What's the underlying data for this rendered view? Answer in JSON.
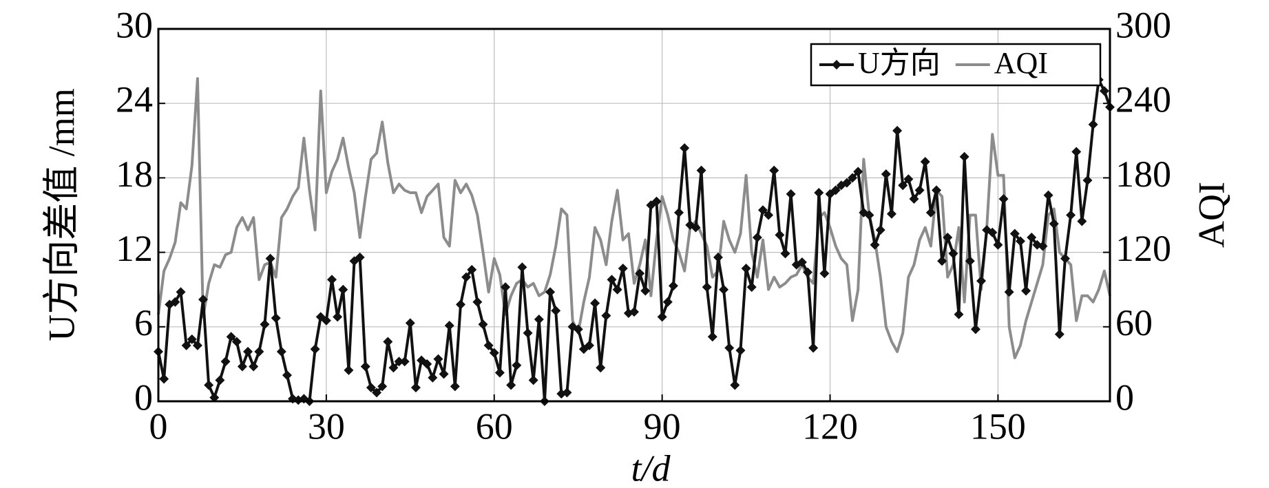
{
  "chart_data": {
    "type": "line",
    "xlabel": "t/d",
    "ylabel": "U方向差值 /mm",
    "y2label": "AQI",
    "xlim": [
      0,
      170
    ],
    "xticks": [
      0,
      30,
      60,
      90,
      120,
      150
    ],
    "ylim": [
      0,
      30
    ],
    "yticks": [
      0,
      6,
      12,
      18,
      24,
      30
    ],
    "y2lim": [
      0,
      300
    ],
    "y2ticks": [
      0,
      60,
      120,
      180,
      240,
      300
    ],
    "grid": true,
    "legend": "upper right",
    "x": [
      0,
      1,
      2,
      3,
      4,
      5,
      6,
      7,
      8,
      9,
      10,
      11,
      12,
      13,
      14,
      15,
      16,
      17,
      18,
      19,
      20,
      21,
      22,
      23,
      24,
      25,
      26,
      27,
      28,
      29,
      30,
      31,
      32,
      33,
      34,
      35,
      36,
      37,
      38,
      39,
      40,
      41,
      42,
      43,
      44,
      45,
      46,
      47,
      48,
      49,
      50,
      51,
      52,
      53,
      54,
      55,
      56,
      57,
      58,
      59,
      60,
      61,
      62,
      63,
      64,
      65,
      66,
      67,
      68,
      69,
      70,
      71,
      72,
      73,
      74,
      75,
      76,
      77,
      78,
      79,
      80,
      81,
      82,
      83,
      84,
      85,
      86,
      87,
      88,
      89,
      90,
      91,
      92,
      93,
      94,
      95,
      96,
      97,
      98,
      99,
      100,
      101,
      102,
      103,
      104,
      105,
      106,
      107,
      108,
      109,
      110,
      111,
      112,
      113,
      114,
      115,
      116,
      117,
      118,
      119,
      120,
      121,
      122,
      123,
      124,
      125,
      126,
      127,
      128,
      129,
      130,
      131,
      132,
      133,
      134,
      135,
      136,
      137,
      138,
      139,
      140,
      141,
      142,
      143,
      144,
      145,
      146,
      147,
      148,
      149,
      150,
      151,
      152,
      153,
      154,
      155,
      156,
      157,
      158,
      159,
      160,
      161,
      162,
      163,
      164,
      165,
      166,
      167,
      168,
      169,
      170
    ],
    "series": [
      {
        "name": "U方向",
        "color": "#111111",
        "marker": "diamond",
        "values": [
          4,
          1.8,
          7.8,
          8,
          8.8,
          4.5,
          5,
          4.5,
          8.2,
          1.3,
          0.3,
          1.7,
          3.2,
          5.2,
          4.8,
          2.8,
          4,
          2.8,
          4,
          6.2,
          11.5,
          6.7,
          4,
          2.1,
          0.2,
          0.1,
          0.2,
          0,
          4.2,
          6.8,
          6.5,
          9.8,
          6.8,
          9,
          2.5,
          11.3,
          11.6,
          2.8,
          1.1,
          0.7,
          1.2,
          4.8,
          2.7,
          3.2,
          3.2,
          6.3,
          1.1,
          3.3,
          3,
          1.9,
          3.4,
          2.2,
          6.1,
          1.2,
          7.8,
          10,
          10.6,
          8,
          6.2,
          4.5,
          3.9,
          2.3,
          9.2,
          1.3,
          2.9,
          10.8,
          5.5,
          1.7,
          6.6,
          0,
          8.8,
          7.3,
          0.6,
          0.7,
          6,
          5.8,
          4.2,
          4.5,
          7.9,
          2.7,
          6.9,
          9.8,
          9,
          10.7,
          7.1,
          7.2,
          10.3,
          8.9,
          15.8,
          16.1,
          6.8,
          8,
          9.3,
          15.2,
          20.4,
          14.2,
          14,
          18.6,
          9.2,
          5.2,
          11.6,
          9,
          4.3,
          1.3,
          4.1,
          10.7,
          9.2,
          13.2,
          15.4,
          15,
          18.6,
          13.4,
          11.9,
          16.7,
          11,
          11.2,
          10.4,
          4.3,
          16.8,
          10.3,
          16.7,
          17,
          17.4,
          17.6,
          18,
          18.5,
          15.2,
          15,
          12.6,
          13.8,
          18.3,
          15.1,
          21.8,
          17.4,
          17.9,
          16.3,
          17,
          19.3,
          15.2,
          17,
          11.3,
          13.2,
          11.9,
          7,
          19.7,
          11.3,
          5.8,
          9.7,
          13.8,
          13.6,
          12.6,
          16.3,
          8.8,
          13.5,
          12.9,
          8.9,
          13.2,
          12.6,
          12.5,
          16.6,
          14.3,
          5.4,
          11.5,
          15,
          20.1,
          14.5,
          17.8,
          22.3,
          25.9,
          25,
          23.7
        ]
      },
      {
        "name": "AQI",
        "color": "#8c8c8c",
        "axis": "y2",
        "values": [
          70,
          105,
          115,
          128,
          160,
          155,
          190,
          260,
          68,
          95,
          110,
          108,
          118,
          120,
          140,
          148,
          138,
          148,
          98,
          110,
          112,
          100,
          148,
          155,
          165,
          172,
          212,
          170,
          138,
          250,
          168,
          185,
          195,
          212,
          188,
          168,
          132,
          165,
          195,
          200,
          225,
          192,
          168,
          175,
          170,
          168,
          168,
          152,
          165,
          170,
          175,
          132,
          125,
          178,
          168,
          175,
          166,
          150,
          120,
          88,
          115,
          102,
          70,
          85,
          95,
          98,
          92,
          95,
          85,
          88,
          102,
          125,
          155,
          150,
          65,
          55,
          80,
          100,
          140,
          130,
          110,
          145,
          170,
          130,
          135,
          95,
          110,
          130,
          85,
          130,
          165,
          150,
          130,
          120,
          105,
          140,
          145,
          135,
          125,
          100,
          105,
          145,
          130,
          120,
          135,
          182,
          120,
          100,
          130,
          90,
          100,
          92,
          95,
          100,
          102,
          110,
          100,
          95,
          148,
          152,
          140,
          125,
          115,
          110,
          65,
          90,
          195,
          150,
          130,
          100,
          60,
          48,
          40,
          55,
          100,
          110,
          130,
          140,
          125,
          170,
          165,
          100,
          110,
          140,
          80,
          150,
          150,
          90,
          140,
          215,
          182,
          182,
          60,
          35,
          45,
          65,
          80,
          95,
          110,
          150,
          155,
          120,
          115,
          110,
          65,
          85,
          85,
          80,
          90,
          105,
          85
        ]
      }
    ]
  }
}
